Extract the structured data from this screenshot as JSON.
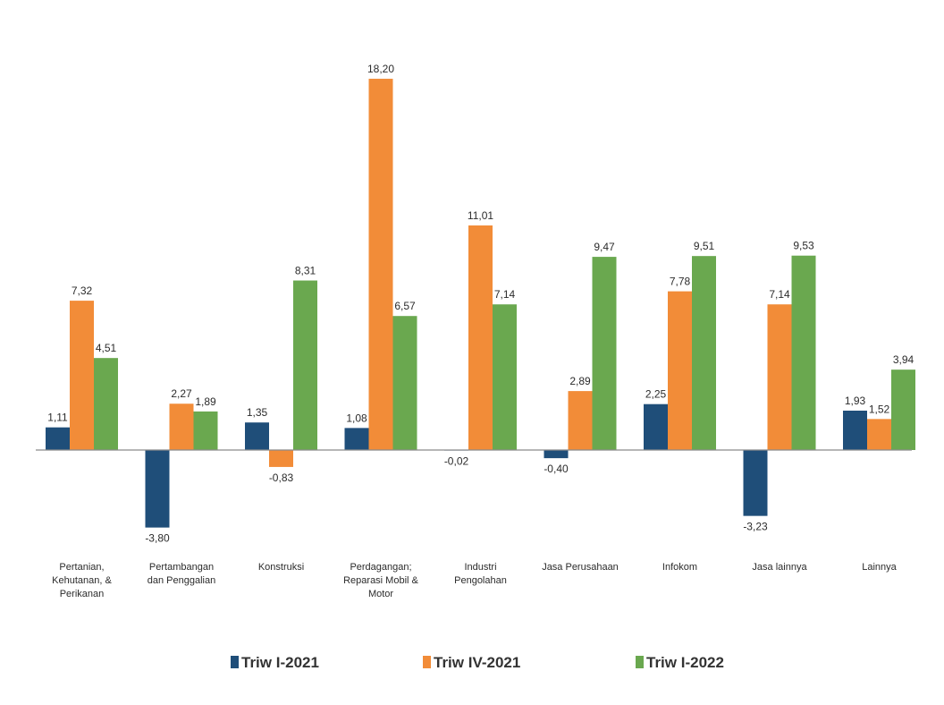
{
  "chart_data": {
    "type": "bar",
    "categories": [
      [
        "Pertanian,",
        "Kehutanan, &",
        "Perikanan"
      ],
      [
        "Pertambangan",
        "dan Penggalian"
      ],
      [
        "Konstruksi"
      ],
      [
        "Perdagangan;",
        "Reparasi Mobil &",
        "Motor"
      ],
      [
        "Industri",
        "Pengolahan"
      ],
      [
        "Jasa Perusahaan"
      ],
      [
        "Infokom"
      ],
      [
        "Jasa lainnya"
      ],
      [
        "Lainnya"
      ]
    ],
    "series": [
      {
        "name": "Triw I-2021",
        "color": "#1f4e79",
        "values": [
          1.11,
          -3.8,
          1.35,
          1.08,
          -0.02,
          -0.4,
          2.25,
          -3.23,
          1.93
        ],
        "labels": [
          "1,11",
          "-3,80",
          "1,35",
          "1,08",
          "-0,02",
          "-0,40",
          "2,25",
          "-3,23",
          "1,93"
        ]
      },
      {
        "name": "Triw IV-2021",
        "color": "#f28c38",
        "values": [
          7.32,
          2.27,
          -0.83,
          18.2,
          11.01,
          2.89,
          7.78,
          7.14,
          1.52
        ],
        "labels": [
          "7,32",
          "2,27",
          "-0,83",
          "18,20",
          "11,01",
          "2,89",
          "7,78",
          "7,14",
          "1,52"
        ]
      },
      {
        "name": "Triw I-2022",
        "color": "#6aa84f",
        "values": [
          4.51,
          1.89,
          8.31,
          6.57,
          7.14,
          9.47,
          9.51,
          9.53,
          3.94
        ],
        "labels": [
          "4,51",
          "1,89",
          "8,31",
          "6,57",
          "7,14",
          "9,47",
          "9,51",
          "9,53",
          "3,94"
        ]
      }
    ],
    "ylim": [
      -4.5,
      19
    ],
    "grid": false,
    "legend_position": "bottom"
  }
}
